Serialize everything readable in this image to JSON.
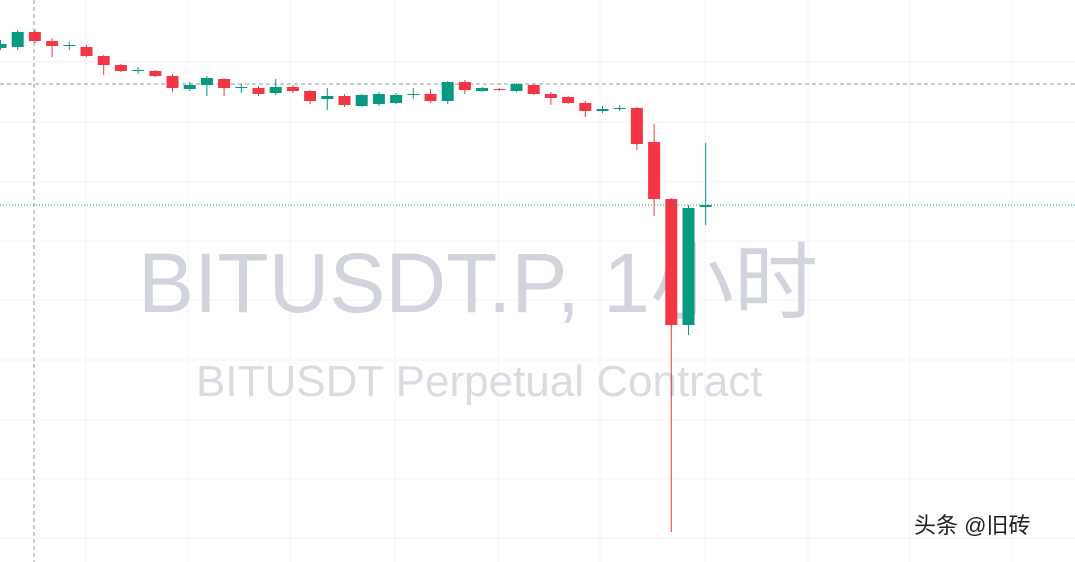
{
  "chart_data": {
    "type": "candlestick",
    "title": "BITUSDT.P, 1小时",
    "subtitle": "BITUSDT Perpetual Contract",
    "watermark": "头条 @旧砖",
    "up_color": "#089981",
    "down_color": "#f23645",
    "ylim": [
      0,
      562
    ],
    "open": [
      514,
      515,
      530,
      521,
      516,
      515,
      506,
      497,
      491,
      491,
      486,
      473,
      477,
      483,
      474,
      474,
      469,
      475,
      471,
      463,
      466,
      456,
      458,
      459,
      467,
      468,
      461,
      480,
      471,
      473,
      471,
      477,
      468,
      465,
      459,
      451,
      453,
      454,
      420,
      363,
      237,
      355
    ],
    "high": [
      522,
      532,
      532,
      524,
      520,
      517,
      507,
      498,
      495,
      492,
      488,
      480,
      486,
      484,
      478,
      476,
      483,
      477,
      472,
      474,
      468,
      468,
      470,
      469,
      474,
      473,
      481,
      482,
      475,
      474,
      479,
      478,
      470,
      466,
      461,
      456,
      457,
      455,
      438,
      364,
      357,
      419
    ],
    "low": [
      512,
      512,
      519,
      505,
      512,
      505,
      487,
      490,
      488,
      485,
      470,
      471,
      466,
      466,
      469,
      466,
      467,
      469,
      458,
      452,
      455,
      455,
      456,
      458,
      463,
      459,
      458,
      468,
      470,
      471,
      470,
      467,
      457,
      458,
      445,
      449,
      451,
      412,
      346,
      30,
      227,
      337
    ],
    "close": [
      518,
      530,
      521,
      516,
      517,
      506,
      497,
      491,
      492,
      486,
      474,
      477,
      484,
      474,
      475,
      468,
      475,
      471,
      461,
      466,
      457,
      467,
      468,
      467,
      468,
      461,
      480,
      472,
      474,
      472,
      478,
      468,
      464,
      459,
      451,
      453,
      454,
      418,
      363,
      237,
      354,
      357
    ]
  }
}
